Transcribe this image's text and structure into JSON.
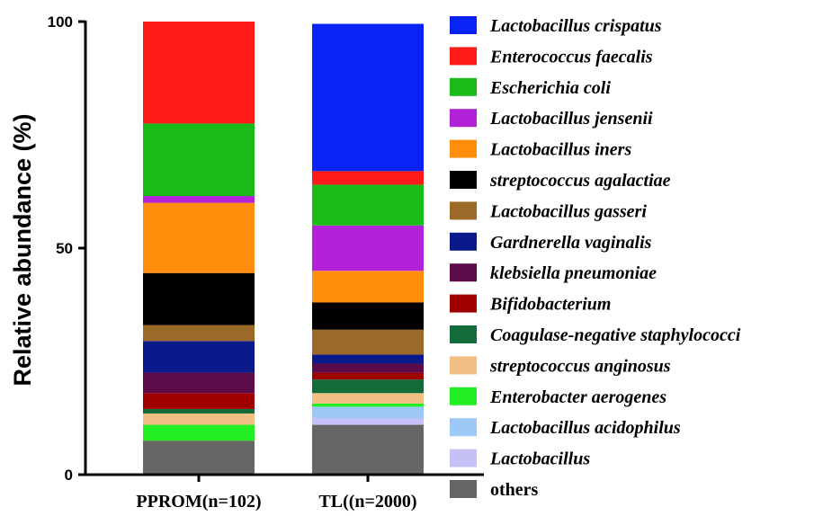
{
  "chart_data": {
    "type": "bar",
    "stacked": true,
    "ylabel": "Relative abundance (%)",
    "xlabel": "",
    "ylim": [
      0,
      100
    ],
    "yticks": [
      "0",
      "50",
      "100"
    ],
    "categories": [
      "PPROM(n=102)",
      "TL((n=2000)"
    ],
    "legend_position": "right",
    "series": [
      {
        "name": "others",
        "color": "#666666",
        "italic": false,
        "values": [
          7.5,
          11
        ]
      },
      {
        "name": "Lactobacillus",
        "color": "#c5c0f5",
        "italic": true,
        "values": [
          0,
          1.5
        ]
      },
      {
        "name": "Lactobacillus acidophilus",
        "color": "#9ec8f5",
        "italic": true,
        "values": [
          0,
          2.5
        ]
      },
      {
        "name": "Enterobacter aerogenes",
        "color": "#22ee22",
        "italic": true,
        "values": [
          3.5,
          0.7
        ]
      },
      {
        "name": "streptococcus anginosus",
        "color": "#f2be84",
        "italic": true,
        "values": [
          2.5,
          2.3
        ]
      },
      {
        "name": "Coagulase-negative staphylococci",
        "color": "#146b3a",
        "italic": true,
        "values": [
          1.0,
          3.0
        ]
      },
      {
        "name": "Bifidobacterium",
        "color": "#a00000",
        "italic": true,
        "values": [
          3.5,
          1.5
        ]
      },
      {
        "name": "klebsiella pneumoniae",
        "color": "#5e0b4a",
        "italic": true,
        "values": [
          4.5,
          2.0
        ]
      },
      {
        "name": "Gardnerella vaginalis",
        "color": "#0a1a8a",
        "italic": true,
        "values": [
          7.0,
          2.0
        ]
      },
      {
        "name": "Lactobacillus gasseri",
        "color": "#9b6a28",
        "italic": true,
        "values": [
          3.5,
          5.5
        ]
      },
      {
        "name": "streptococcus agalactiae",
        "color": "#000000",
        "italic": true,
        "values": [
          11.5,
          6.0
        ]
      },
      {
        "name": "Lactobacillus iners",
        "color": "#ff8c0a",
        "italic": true,
        "values": [
          15.5,
          7.0
        ]
      },
      {
        "name": "Lactobacillus jensenii",
        "color": "#b222d8",
        "italic": true,
        "values": [
          1.5,
          10.0
        ]
      },
      {
        "name": "Escherichia coli",
        "color": "#18bb18",
        "italic": true,
        "values": [
          16.0,
          9.0
        ]
      },
      {
        "name": "Enterococcus faecalis",
        "color": "#ff1a1a",
        "italic": true,
        "values": [
          22.5,
          3.0
        ]
      },
      {
        "name": "Lactobacillus crispatus",
        "color": "#0a23f5",
        "italic": true,
        "values": [
          0,
          32.5
        ]
      }
    ]
  }
}
